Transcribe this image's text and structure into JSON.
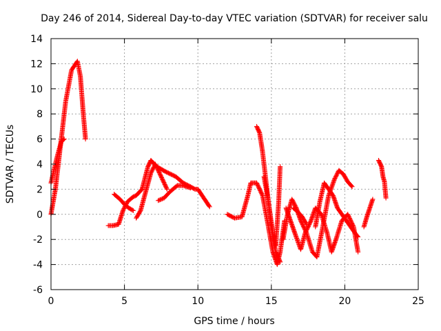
{
  "chart_data": {
    "type": "scatter",
    "title": "Day 246 of 2014, Sidereal Day-to-day VTEC variation (SDTVAR) for receiver salu",
    "xlabel": "GPS time / hours",
    "ylabel": "SDTVAR / TECUs",
    "xlim": [
      0,
      25
    ],
    "ylim": [
      -6,
      14
    ],
    "xticks": [
      "0",
      "5",
      "10",
      "15",
      "20",
      "25"
    ],
    "yticks": [
      "-6",
      "-4",
      "-2",
      "0",
      "2",
      "4",
      "6",
      "8",
      "10",
      "12",
      "14"
    ],
    "grid": true,
    "marker": "+",
    "color": "#ff0000",
    "segments": [
      {
        "name": "arc-a",
        "x": [
          0.0,
          0.3,
          0.6,
          1.0,
          1.4,
          1.8,
          2.0,
          2.2,
          2.35
        ],
        "y": [
          0.0,
          2.0,
          5.0,
          9.0,
          11.5,
          12.2,
          11.0,
          8.0,
          6.0
        ]
      },
      {
        "name": "arc-b",
        "x": [
          0.0,
          0.2,
          0.4,
          0.7,
          0.9
        ],
        "y": [
          2.5,
          3.5,
          4.5,
          5.8,
          6.0
        ]
      },
      {
        "name": "arc-c",
        "x": [
          3.9,
          4.2,
          4.6,
          4.9,
          5.2,
          5.6,
          5.8,
          6.2,
          6.6,
          6.8,
          7.2,
          7.8,
          8.5,
          9.0,
          9.5,
          9.8,
          10.0,
          10.4,
          10.8
        ],
        "y": [
          -0.9,
          -0.9,
          -0.8,
          0.3,
          1.0,
          1.4,
          1.5,
          2.0,
          3.8,
          4.3,
          3.8,
          3.4,
          3.0,
          2.5,
          2.2,
          2.0,
          2.0,
          1.3,
          0.6
        ]
      },
      {
        "name": "arc-d",
        "x": [
          4.3,
          4.7,
          5.0,
          5.3,
          5.6
        ],
        "y": [
          1.6,
          1.2,
          0.8,
          0.5,
          0.3
        ]
      },
      {
        "name": "arc-e",
        "x": [
          5.8,
          6.1,
          6.4,
          6.8,
          7.1,
          7.5,
          7.9
        ],
        "y": [
          -0.3,
          0.3,
          1.6,
          3.3,
          4.0,
          3.0,
          2.0
        ]
      },
      {
        "name": "arc-f",
        "x": [
          7.3,
          7.7,
          8.1,
          8.6,
          9.0,
          9.5
        ],
        "y": [
          1.1,
          1.3,
          1.8,
          2.3,
          2.3,
          2.1
        ]
      },
      {
        "name": "arc-g",
        "x": [
          12.0,
          12.5,
          13.0,
          13.4,
          13.6,
          14.0,
          14.4,
          14.8,
          15.1,
          15.4,
          15.6,
          15.9
        ],
        "y": [
          0.0,
          -0.3,
          -0.2,
          1.5,
          2.5,
          2.5,
          1.5,
          -1.0,
          -3.0,
          -4.0,
          -3.0,
          -0.5
        ]
      },
      {
        "name": "arc-h",
        "x": [
          14.0,
          14.2,
          14.4,
          14.6,
          14.8,
          15.0,
          15.3,
          15.5,
          15.6
        ],
        "y": [
          7.0,
          6.5,
          5.0,
          3.0,
          1.0,
          -1.0,
          -3.0,
          -3.5,
          -3.8
        ]
      },
      {
        "name": "arc-i",
        "x": [
          14.5,
          14.8,
          15.1,
          15.3,
          15.5,
          15.6
        ],
        "y": [
          3.0,
          1.0,
          -1.5,
          -2.5,
          1.0,
          3.8
        ]
      },
      {
        "name": "arc-j",
        "x": [
          15.8,
          16.1,
          16.4,
          16.7,
          17.0,
          17.4,
          17.8,
          18.1,
          18.5,
          18.9,
          19.3,
          19.6,
          19.9,
          20.2,
          20.5
        ],
        "y": [
          -2.0,
          0.0,
          1.2,
          0.5,
          -0.5,
          -1.5,
          -3.0,
          -3.4,
          -1.0,
          1.5,
          2.8,
          3.5,
          3.2,
          2.6,
          2.2
        ]
      },
      {
        "name": "arc-k",
        "x": [
          16.0,
          16.3,
          16.6,
          17.0,
          17.3,
          17.7,
          18.0,
          18.4,
          18.8,
          19.1,
          19.4,
          19.8,
          20.2,
          20.6,
          20.9
        ],
        "y": [
          0.5,
          -0.5,
          -1.5,
          -2.8,
          -1.5,
          -0.5,
          0.5,
          0.0,
          -1.5,
          -3.0,
          -2.0,
          -0.5,
          0.0,
          -1.0,
          -3.0
        ]
      },
      {
        "name": "arc-l",
        "x": [
          18.0,
          18.3,
          18.6,
          18.9,
          19.2,
          19.5,
          19.8,
          20.1,
          20.4,
          20.7,
          20.9
        ],
        "y": [
          -1.0,
          1.0,
          2.5,
          2.0,
          1.5,
          0.5,
          0.0,
          -0.5,
          -1.0,
          -1.5,
          -1.8
        ]
      },
      {
        "name": "arc-m",
        "x": [
          16.5,
          16.8,
          17.1,
          17.4
        ],
        "y": [
          0.5,
          0.2,
          -0.2,
          -0.8
        ]
      },
      {
        "name": "arc-n",
        "x": [
          21.3,
          21.5,
          21.7,
          21.9
        ],
        "y": [
          -1.0,
          -0.2,
          0.5,
          1.2
        ]
      },
      {
        "name": "arc-o",
        "x": [
          22.3,
          22.5,
          22.6,
          22.7,
          22.8
        ],
        "y": [
          4.3,
          3.8,
          3.0,
          2.6,
          1.3
        ]
      }
    ]
  }
}
